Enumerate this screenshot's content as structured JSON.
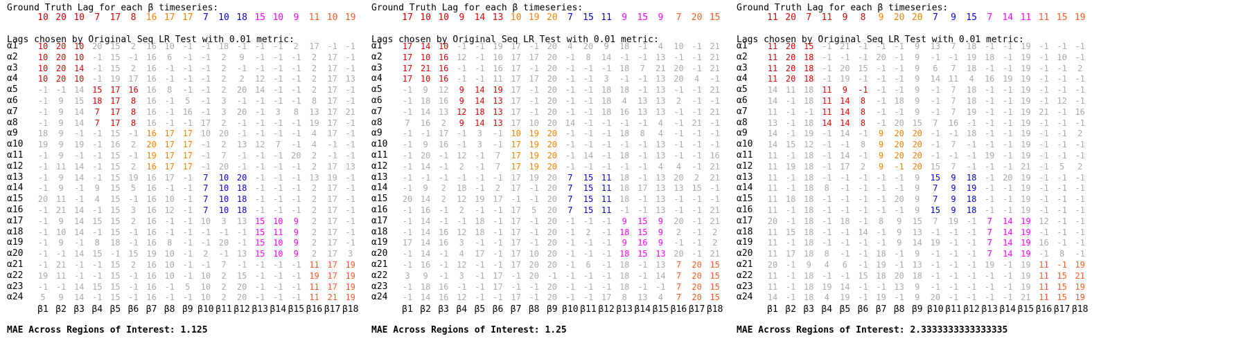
{
  "colors": {
    "0": "#aaaaaa",
    "1": "#e00000",
    "2": "#ff7f00",
    "3": "#0000e0",
    "4": "#ff00ff",
    "5": "#ff5a1e"
  },
  "row_labels": [
    "α1",
    "α2",
    "α3",
    "α4",
    "α5",
    "α6",
    "α7",
    "α8",
    "α9",
    "α10",
    "α11",
    "α12",
    "α13",
    "α14",
    "α15",
    "α16",
    "α17",
    "α18",
    "α19",
    "α20",
    "α21",
    "α22",
    "α23",
    "α24"
  ],
  "col_labels": [
    "β1",
    "β2",
    "β3",
    "β4",
    "β5",
    "β6",
    "β7",
    "β8",
    "β9",
    "β10",
    "β11",
    "β12",
    "β13",
    "β14",
    "β15",
    "β16",
    "β17",
    "β18"
  ],
  "panels": [
    {
      "gt_title": "Ground Truth Lag for each β timeseries:",
      "lags_title": "Lags chosen by Original Seq LR Test with 0.01 metric:",
      "mae_text": "MAE Across Regions of Interest: 1.125",
      "gt": [
        [
          "10",
          "1"
        ],
        [
          "20",
          "1"
        ],
        [
          "10",
          "1"
        ],
        [
          "7",
          "1"
        ],
        [
          "17",
          "1"
        ],
        [
          "8",
          "1"
        ],
        [
          "16",
          "2"
        ],
        [
          "17",
          "2"
        ],
        [
          "17",
          "2"
        ],
        [
          "7",
          "3"
        ],
        [
          "10",
          "3"
        ],
        [
          "18",
          "3"
        ],
        [
          "15",
          "4"
        ],
        [
          "10",
          "4"
        ],
        [
          "9",
          "4"
        ],
        [
          "11",
          "5"
        ],
        [
          "10",
          "5"
        ],
        [
          "19",
          "5"
        ]
      ],
      "grid": [
        "10|1 20|1 10|1 20|0 15|0 2|0 16|0 10|0 -1|0 -1|0 18|0 -1|0 -1|0 -1|0 2|0 17|0 -1|0 -1|0",
        "10|1 20|1 10|1 -1|0 15|0 -1|0 16|0 6|0 -1|0 -1|0 2|0 9|0 -1|0 -1|0 -1|0 2|0 17|0 -1|0",
        "10|1 20|1 14|1 -1|0 15|0 2|0 16|0 -1|0 -1|0 -1|0 2|0 -1|0 -1|0 -1|0 -1|0 2|0 17|0 -1|0",
        "10|1 20|1 10|1 -1|0 19|0 17|0 16|0 -1|0 -1|0 -1|0 2|0 2|0 12|0 -1|0 -1|0 2|0 17|0 13|0",
        "-1|0 -1|0 14|0 15|1 17|1 16|1 16|0 8|0 -1|0 -1|0 2|0 20|0 14|0 -1|0 -1|0 2|0 17|0 -1|0",
        "-1|0 9|0 15|0 18|1 17|1 8|1 16|0 -1|0 5|0 -1|0 3|0 -1|0 -1|0 -1|0 -1|0 8|0 17|0 -1|0",
        "-1|0 9|0 14|0 7|1 17|1 8|1 16|0 -1|0 16|0 -1|0 3|0 20|0 -1|0 3|0 8|0 13|0 17|0 21|0",
        "-1|0 9|0 14|0 7|1 17|1 8|1 16|0 -1|0 -1|0 17|0 2|0 -1|0 -1|0 -1|0 -1|0 19|0 17|0 -1|0",
        "18|0 9|0 -1|0 -1|0 15|0 -1|0 16|2 17|2 17|2 10|0 20|0 -1|0 -1|0 -1|0 -1|0 4|0 17|0 -1|0",
        "19|0 9|0 19|0 -1|0 16|0 2|0 20|2 17|2 17|2 -1|0 2|0 13|0 12|0 7|0 -1|0 4|0 -1|0 -1|0",
        "-1|0 9|0 -1|0 -1|0 15|0 -1|0 19|2 17|2 17|2 -1|0 7|0 -1|0 -1|0 -1|0 20|0 2|0 -1|0 -1|0",
        "-1|0 11|0 14|0 -1|0 15|0 2|0 16|2 17|2 17|2 -1|0 20|0 -1|0 -1|0 -1|0 -1|0 2|0 17|0 13|0",
        "-1|0 9|0 14|0 -1|0 15|0 19|0 16|0 17|0 -1|0 7|3 10|3 20|3 -1|0 -1|0 -1|0 13|0 19|0 -1|0",
        "-1|0 9|0 -1|0 9|0 15|0 5|0 16|0 -1|0 -1|0 7|3 10|3 18|3 -1|0 -1|0 -1|0 2|0 17|0 -1|0",
        "20|0 11|0 -1|0 4|0 15|0 -1|0 16|0 10|0 -1|0 7|3 10|3 18|3 -1|0 -1|0 -1|0 2|0 17|0 -1|0",
        "-1|0 21|0 14|0 -1|0 15|0 3|0 16|0 12|0 -1|0 7|3 10|3 18|3 -1|0 -1|0 -1|0 2|0 17|0 -1|0",
        "-1|0 9|0 14|0 15|0 15|0 2|0 16|0 -1|0 -1|0 10|0 3|0 13|0 15|4 10|4 9|4 2|0 17|0 -1|0",
        "-1|0 10|0 14|0 -1|0 15|0 -1|0 16|0 -1|0 -1|0 -1|0 -1|0 -1|0 15|4 11|4 9|4 2|0 17|0 -1|0",
        "-1|0 9|0 -1|0 8|0 18|0 -1|0 16|0 8|0 -1|0 -1|0 20|0 -1|0 15|4 10|4 9|4 2|0 17|0 -1|0",
        "-1|0 -1|0 14|0 15|0 -1|0 15|0 19|0 10|0 -1|0 2|0 -1|0 13|0 15|4 10|4 9|4 2|0 17|0 3|0",
        "-1|0 21|0 -1|0 -1|0 15|0 2|0 16|0 10|0 -1|0 -1|0 7|0 -1|0 -1|0 -1|0 -1|0 11|5 17|5 19|5",
        "19|0 11|0 -1|0 -1|0 15|0 -1|0 16|0 10|0 -1|0 10|0 2|0 15|0 -1|0 -1|0 -1|0 19|5 17|5 19|5",
        "-1|0 -1|0 14|0 15|0 15|0 -1|0 16|0 -1|0 5|0 10|0 2|0 20|0 -1|0 -1|0 -1|0 11|5 17|5 19|5",
        "5|0 9|0 14|0 -1|0 15|0 -1|0 16|0 -1|0 -1|0 10|0 2|0 20|0 -1|0 -1|0 -1|0 11|5 21|5 19|5"
      ]
    },
    {
      "gt_title": "Ground Truth Lag for each β timeseries:",
      "lags_title": "Lags chosen by Original Seq LR Test with 0.01 metric:",
      "mae_text": "MAE Across Regions of Interest: 1.25",
      "gt": [
        [
          "17",
          "1"
        ],
        [
          "10",
          "1"
        ],
        [
          "10",
          "1"
        ],
        [
          "9",
          "1"
        ],
        [
          "14",
          "1"
        ],
        [
          "13",
          "1"
        ],
        [
          "10",
          "2"
        ],
        [
          "19",
          "2"
        ],
        [
          "20",
          "2"
        ],
        [
          "7",
          "3"
        ],
        [
          "15",
          "3"
        ],
        [
          "11",
          "3"
        ],
        [
          "9",
          "4"
        ],
        [
          "15",
          "4"
        ],
        [
          "9",
          "4"
        ],
        [
          "7",
          "5"
        ],
        [
          "20",
          "5"
        ],
        [
          "15",
          "5"
        ]
      ],
      "grid": [
        "17|1 14|1 10|1 -1|0 -1|0 19|0 17|0 -1|0 20|0 4|0 20|0 9|0 18|0 -1|0 4|0 10|0 -1|0 21|0",
        "17|1 10|1 16|1 12|0 -1|0 10|0 17|0 17|0 20|0 -1|0 8|0 14|0 -1|0 -1|0 13|0 -1|0 -1|0 21|0",
        "17|1 21|1 16|1 -1|0 -1|0 16|0 17|0 -1|0 20|0 -1|0 -1|0 -1|0 18|0 7|0 21|0 20|0 -1|0 21|0",
        "17|1 10|1 16|1 -1|0 -1|0 11|0 17|0 17|0 20|0 -1|0 -1|0 3|0 -1|0 -1|0 13|0 20|0 4|0 -1|0",
        "-1|0 9|0 12|0 9|1 14|1 19|1 17|0 -1|0 20|0 -1|0 -1|0 18|0 18|0 -1|0 13|0 -1|0 -1|0 21|0",
        "-1|0 18|0 16|0 9|1 14|1 13|1 17|0 -1|0 20|0 -1|0 -1|0 18|0 4|0 13|0 13|0 2|0 -1|0 -1|0",
        "-1|0 14|0 13|0 12|1 18|1 13|1 17|0 -1|0 20|0 -1|0 -1|0 18|0 16|0 13|0 13|0 -1|0 -1|0 21|0",
        "7|0 16|0 2|0 9|1 14|1 13|1 17|0 10|0 20|0 14|0 -1|0 -1|0 -1|0 -1|0 4|0 -1|0 21|0 -1|0",
        "-1|0 -1|0 17|0 -1|0 3|0 -1|0 10|2 19|2 20|2 -1|0 -1|0 -1|0 18|0 8|0 4|0 -1|0 -1|0 -1|0",
        "-1|0 9|0 16|0 -1|0 3|0 -1|0 17|2 19|2 20|2 -1|0 -1|0 -1|0 -1|0 -1|0 13|0 -1|0 -1|0 -1|0",
        "-1|0 20|0 -1|0 12|0 -1|0 7|0 17|2 19|2 20|2 -1|0 14|0 -1|0 18|0 -1|0 13|0 -1|0 -1|0 16|0",
        "-1|0 14|0 -1|0 2|0 -1|0 7|0 17|2 19|2 20|2 -1|0 -1|0 -1|0 -1|0 -1|0 4|0 4|0 -1|0 21|0",
        "-1|0 -1|0 -1|0 -1|0 -1|0 -1|0 17|0 19|0 20|0 7|3 15|3 11|3 18|0 -1|0 13|0 20|0 2|0 21|0",
        "-1|0 9|0 2|0 18|0 -1|0 2|0 17|0 -1|0 20|0 7|3 15|3 11|3 18|0 17|0 13|0 13|0 15|0 -1|0",
        "20|0 14|0 2|0 12|0 19|0 17|0 -1|0 -1|0 20|0 7|3 15|3 11|3 18|0 -1|0 13|0 -1|0 -1|0 -1|0",
        "-1|0 16|0 -1|0 2|0 -1|0 -1|0 17|0 5|0 20|0 7|3 15|3 11|3 -1|0 -1|0 13|0 -1|0 -1|0 21|0",
        "-1|0 14|0 -1|0 -1|0 18|0 -1|0 17|0 -1|0 20|0 -1|0 -1|0 -1|0 9|4 15|4 9|4 20|0 -1|0 21|0",
        "-1|0 14|0 16|0 12|0 18|0 -1|0 17|0 -1|0 20|0 -1|0 2|0 -1|0 18|4 15|4 9|4 2|0 -1|0 2|0",
        "17|0 14|0 16|0 3|0 -1|0 -1|0 17|0 -1|0 20|0 -1|0 -1|0 -1|0 9|4 16|4 9|4 -1|0 -1|0 2|0",
        "-1|0 14|0 -1|0 4|0 17|0 -1|0 17|0 10|0 20|0 -1|0 -1|0 -1|0 18|4 15|4 13|4 20|0 -1|0 21|0",
        "-1|0 16|0 -1|0 12|0 -1|0 -1|0 17|0 20|0 20|0 -1|0 6|0 -1|0 18|0 -1|0 13|0 7|5 20|5 15|5",
        "3|0 9|0 -1|0 3|0 -1|0 17|0 -1|0 20|0 -1|0 -1|0 -1|0 -1|0 18|0 -1|0 14|0 7|5 20|5 15|5",
        "-1|0 18|0 16|0 -1|0 -1|0 17|0 -1|0 -1|0 20|0 -1|0 -1|0 -1|0 18|0 -1|0 -1|0 7|5 20|5 15|5",
        "-1|0 14|0 16|0 12|0 -1|0 -1|0 17|0 -1|0 20|0 -1|0 -1|0 17|0 8|0 13|0 4|0 7|5 20|5 15|5"
      ]
    },
    {
      "gt_title": "Ground Truth Lag for each β timeseries:",
      "lags_title": "Lags chosen by Original Seq LR Test with 0.01 metric:",
      "mae_text": "MAE Across Regions of Interest: 2.3333333333333335",
      "gt": [
        [
          "11",
          "1"
        ],
        [
          "20",
          "1"
        ],
        [
          "7",
          "1"
        ],
        [
          "11",
          "1"
        ],
        [
          "9",
          "1"
        ],
        [
          "8",
          "1"
        ],
        [
          "9",
          "2"
        ],
        [
          "20",
          "2"
        ],
        [
          "20",
          "2"
        ],
        [
          "7",
          "3"
        ],
        [
          "9",
          "3"
        ],
        [
          "15",
          "3"
        ],
        [
          "7",
          "4"
        ],
        [
          "14",
          "4"
        ],
        [
          "11",
          "4"
        ],
        [
          "11",
          "5"
        ],
        [
          "15",
          "5"
        ],
        [
          "19",
          "5"
        ]
      ],
      "grid": [
        "11|1 20|1 15|1 -1|0 21|0 -1|0 -1|0 -1|0 9|0 13|0 7|0 18|0 -1|0 -1|0 19|0 -1|0 -1|0 -1|0",
        "11|1 20|1 18|1 -1|0 -1|0 -1|0 20|0 -1|0 9|0 -1|0 -1|0 19|0 18|0 -1|0 19|0 -1|0 10|0 -1|0",
        "11|1 20|1 18|1 -1|0 20|0 15|0 -1|0 -1|0 9|0 6|0 7|0 18|0 -1|0 -1|0 19|0 -1|0 -1|0 2|0",
        "11|1 20|1 18|1 -1|0 19|0 -1|0 -1|0 -1|0 9|0 14|0 11|0 4|0 16|0 19|0 19|0 -1|0 -1|0 -1|0",
        "14|0 11|0 18|0 11|1 9|1 -1|1 -1|0 -1|0 9|0 -1|0 7|0 18|0 -1|0 -1|0 19|0 -1|0 -1|0 -1|0",
        "14|0 -1|0 18|0 11|1 14|1 8|1 -1|0 18|0 9|0 -1|0 7|0 18|0 -1|0 -1|0 19|0 -1|0 12|0 -1|0",
        "11|0 -1|0 -1|0 11|1 14|1 8|1 -1|0 -1|0 9|0 -1|0 7|0 19|0 -1|0 -1|0 19|0 21|0 -1|0 16|0",
        "13|0 -1|0 18|0 14|1 14|1 8|1 -1|0 20|0 15|0 7|0 16|0 -1|0 -1|0 -1|0 19|0 -1|0 -1|0 -1|0",
        "14|0 -1|0 19|0 -1|0 14|0 -1|0 9|2 20|2 20|2 -1|0 -1|0 18|0 -1|0 -1|0 19|0 -1|0 -1|0 2|0",
        "14|0 15|0 12|0 -1|0 -1|0 8|0 9|2 20|2 20|2 -1|0 7|0 -1|0 -1|0 -1|0 19|0 -1|0 -1|0 -1|0",
        "11|0 -1|0 18|0 -1|0 14|0 -1|0 9|2 20|2 20|2 -1|0 -1|0 -1|0 19|0 -1|0 19|0 -1|0 -1|0 -1|0",
        "11|0 19|0 18|0 -1|0 17|0 2|0 9|2 -1|2 20|2 15|0 7|0 -1|0 -1|0 -1|0 21|0 -1|0 5|0 2|0",
        "11|0 -1|0 18|0 -1|0 -1|0 -1|0 -1|0 -1|0 9|0 15|3 9|3 18|3 -1|0 20|0 19|0 -1|0 -1|0 -1|0",
        "11|0 -1|0 18|0 8|0 -1|0 -1|0 -1|0 -1|0 9|0 7|3 9|3 19|3 -1|0 -1|0 19|0 -1|0 -1|0 -1|0",
        "11|0 18|0 18|0 -1|0 -1|0 -1|0 -1|0 20|0 9|0 7|3 9|3 18|3 -1|0 -1|0 19|0 -1|0 -1|0 -1|0",
        "11|0 -1|0 18|0 -1|0 -1|0 -1|0 -1|0 -1|0 9|0 15|3 9|3 18|3 -1|0 -1|0 19|0 -1|0 -1|0 -1|0",
        "20|0 -1|0 18|0 -1|0 18|0 -1|0 8|0 9|0 15|0 7|0 19|0 -1|0 7|4 14|4 19|4 12|0 -1|0 -1|0",
        "11|0 15|0 18|0 -1|0 -1|0 14|0 -1|0 9|0 13|0 -1|0 -1|0 -1|0 7|4 14|4 19|4 -1|0 -1|0 -1|0",
        "11|0 -1|0 18|0 -1|0 -1|0 -1|0 -1|0 9|0 14|0 19|0 -1|0 -1|0 7|4 14|4 19|4 16|0 -1|0 -1|0",
        "11|0 17|0 18|0 8|0 -1|0 -1|0 18|0 -1|0 9|0 -1|0 -1|0 -1|0 7|4 14|4 19|4 -1|0 8|0 -1|0",
        "20|0 -1|0 9|0 4|0 6|0 -1|0 19|0 -1|0 13|0 -1|0 -1|0 -1|0 19|0 -1|0 19|0 11|5 -1|5 19|5",
        "11|0 -1|0 18|0 -1|0 -1|0 15|0 18|0 20|0 18|0 -1|0 -1|0 -1|0 -1|0 -1|0 19|0 11|5 15|5 21|5",
        "11|0 -1|0 18|0 19|0 14|0 -1|0 -1|0 13|0 9|0 -1|0 -1|0 -1|0 -1|0 -1|0 19|0 11|5 15|5 19|5",
        "14|0 -1|0 18|0 4|0 19|0 -1|0 19|0 -1|0 9|0 20|0 -1|0 -1|0 -1|0 -1|0 21|0 11|5 15|5 19|5"
      ]
    }
  ]
}
